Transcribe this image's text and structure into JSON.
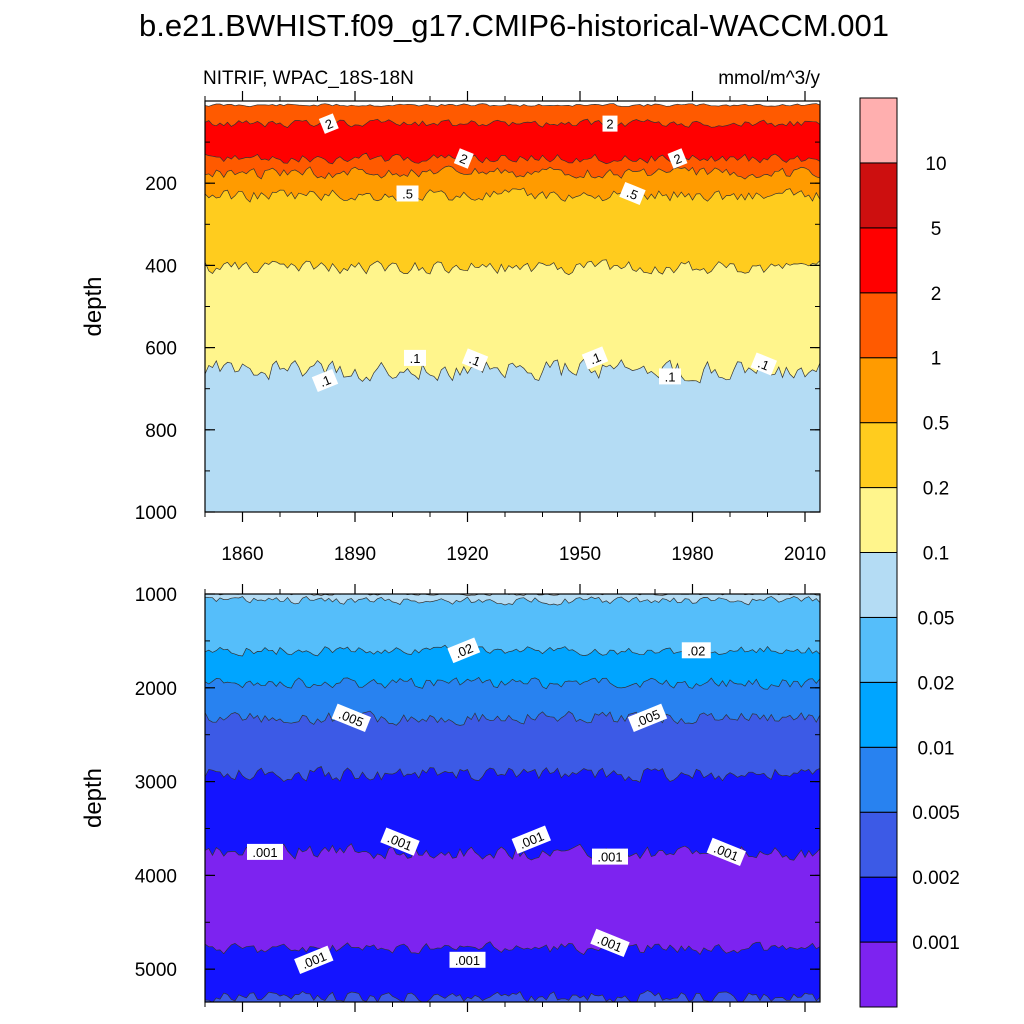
{
  "chart_data": {
    "type": "heatmap",
    "title": "b.e21.BWHIST.f09_g17.CMIP6-historical-WACCM.001",
    "left_label": "NITRIF, WPAC_18S-18N",
    "units": "mmol/m^3/y",
    "ylabel": "depth",
    "x_ticks": [
      1860,
      1890,
      1920,
      1950,
      1980,
      2010
    ],
    "xlim": [
      1850,
      2014
    ],
    "upper_panel": {
      "ylim": [
        0,
        1000
      ],
      "y_ticks": [
        200,
        400,
        600,
        800,
        1000
      ],
      "bands": [
        {
          "top": 10,
          "bottom": 55,
          "color": "#ff5a00"
        },
        {
          "top": 55,
          "bottom": 140,
          "color": "#ff0000"
        },
        {
          "top": 140,
          "bottom": 175,
          "color": "#ff5a00"
        },
        {
          "top": 175,
          "bottom": 230,
          "color": "#ff9b00"
        },
        {
          "top": 230,
          "bottom": 405,
          "color": "#ffcc1e"
        },
        {
          "top": 405,
          "bottom": 655,
          "color": "#fff58c"
        },
        {
          "top": 655,
          "bottom": 1000,
          "color": "#b4dcf4"
        }
      ],
      "contour_labels": [
        {
          "text": "2",
          "year": 1883,
          "depth": 55
        },
        {
          "text": "2",
          "year": 1958,
          "depth": 55
        },
        {
          "text": "2",
          "year": 1919,
          "depth": 140
        },
        {
          "text": "2",
          "year": 1976,
          "depth": 140
        },
        {
          "text": ".5",
          "year": 1904,
          "depth": 225
        },
        {
          "text": ".5",
          "year": 1964,
          "depth": 225
        },
        {
          "text": ".1",
          "year": 1882,
          "depth": 680
        },
        {
          "text": ".1",
          "year": 1906,
          "depth": 625
        },
        {
          "text": ".1",
          "year": 1922,
          "depth": 630
        },
        {
          "text": ".1",
          "year": 1954,
          "depth": 625
        },
        {
          "text": ".1",
          "year": 1974,
          "depth": 670
        },
        {
          "text": ".1",
          "year": 1999,
          "depth": 640
        }
      ]
    },
    "lower_panel": {
      "ylim": [
        1000,
        5350
      ],
      "y_ticks": [
        1000,
        2000,
        3000,
        4000,
        5000
      ],
      "bands": [
        {
          "top": 1000,
          "bottom": 1070,
          "color": "#b4dcf4"
        },
        {
          "top": 1070,
          "bottom": 1600,
          "color": "#55befa"
        },
        {
          "top": 1600,
          "bottom": 1950,
          "color": "#00a5ff"
        },
        {
          "top": 1950,
          "bottom": 2320,
          "color": "#2882f0"
        },
        {
          "top": 2320,
          "bottom": 2920,
          "color": "#3c5ae6"
        },
        {
          "top": 2920,
          "bottom": 3750,
          "color": "#1414ff"
        },
        {
          "top": 3750,
          "bottom": 4780,
          "color": "#7d23f0"
        },
        {
          "top": 4780,
          "bottom": 5300,
          "color": "#1414ff"
        },
        {
          "top": 5300,
          "bottom": 5350,
          "color": "#3c5ae6"
        }
      ],
      "contour_labels": [
        {
          "text": ".02",
          "year": 1919,
          "depth": 1600
        },
        {
          "text": ".02",
          "year": 1981,
          "depth": 1600
        },
        {
          "text": ".005",
          "year": 1889,
          "depth": 2320
        },
        {
          "text": ".005",
          "year": 1968,
          "depth": 2320
        },
        {
          "text": ".001",
          "year": 1866,
          "depth": 3750
        },
        {
          "text": ".001",
          "year": 1902,
          "depth": 3640
        },
        {
          "text": ".001",
          "year": 1937,
          "depth": 3620
        },
        {
          "text": ".001",
          "year": 1958,
          "depth": 3800
        },
        {
          "text": ".001",
          "year": 1989,
          "depth": 3750
        },
        {
          "text": ".001",
          "year": 1879,
          "depth": 4900
        },
        {
          "text": ".001",
          "year": 1920,
          "depth": 4900
        },
        {
          "text": ".001",
          "year": 1958,
          "depth": 4720
        }
      ]
    },
    "colorbar": {
      "colors": [
        "#7d23f0",
        "#1414ff",
        "#3c5ae6",
        "#2882f0",
        "#00a5ff",
        "#55befa",
        "#b4dcf4",
        "#fff58c",
        "#ffcc1e",
        "#ff9b00",
        "#ff5a00",
        "#ff0000",
        "#cd0f0f",
        "#ffafaf"
      ],
      "labels": [
        "0.001",
        "0.002",
        "0.005",
        "0.01",
        "0.02",
        "0.05",
        "0.1",
        "0.2",
        "0.5",
        "1",
        "2",
        "5",
        "10"
      ]
    }
  }
}
